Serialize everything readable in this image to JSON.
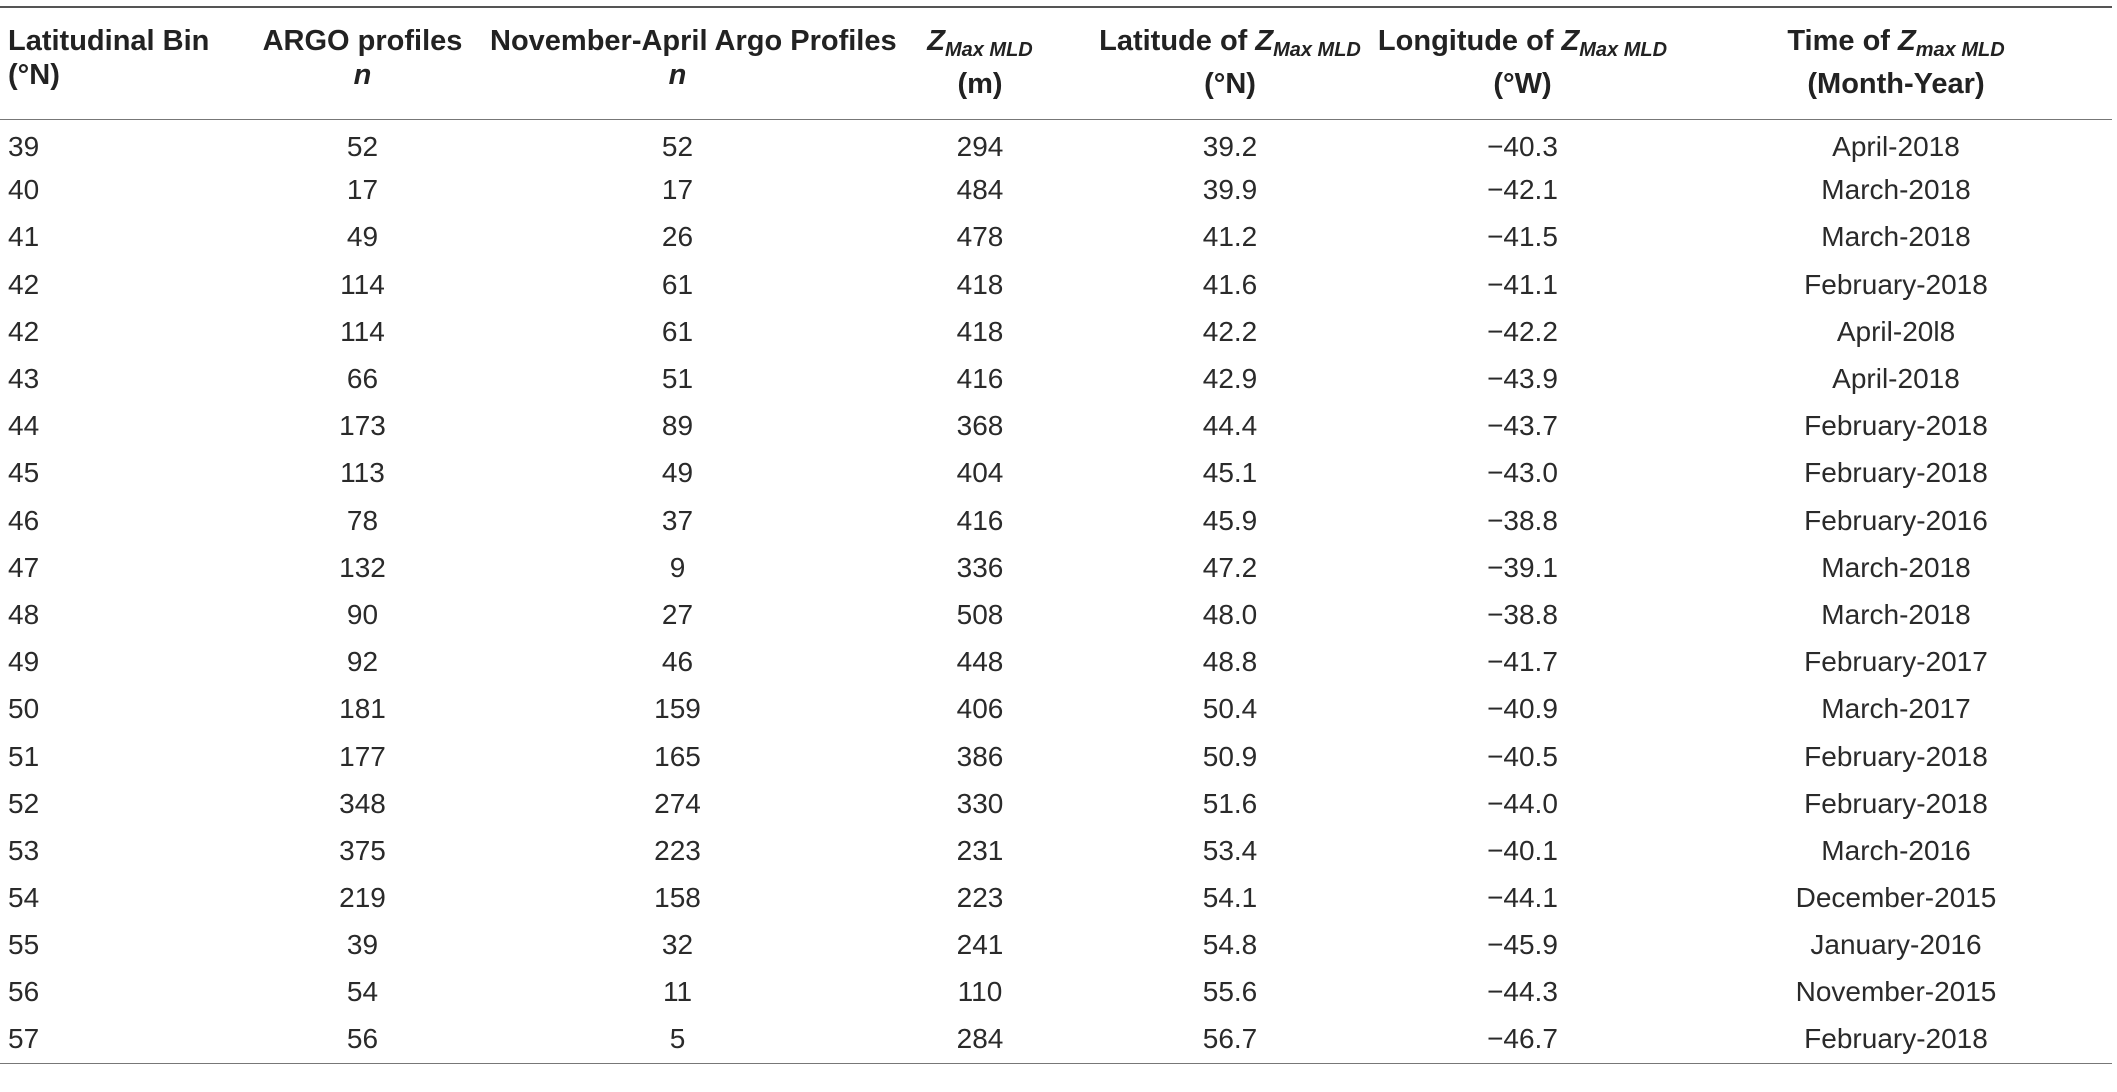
{
  "table": {
    "headers": [
      {
        "line1": "Latitudinal Bin",
        "line2": "(°N)"
      },
      {
        "line1": "ARGO profiles",
        "line2": "n"
      },
      {
        "line1": "November-April Argo Profiles",
        "line2": "n"
      },
      {
        "z": "Z",
        "sub": "Max MLD",
        "pre": "",
        "line2": "(m)"
      },
      {
        "pre": "Latitude of ",
        "z": "Z",
        "sub": "Max MLD",
        "line2": "(°N)"
      },
      {
        "pre": "Longitude of ",
        "z": "Z",
        "sub": "Max MLD",
        "line2": "(°W)"
      },
      {
        "pre": "Time of ",
        "z": "Z",
        "sub": "max MLD",
        "line2": "(Month-Year)"
      }
    ],
    "rows": [
      [
        "39",
        "52",
        "52",
        "294",
        "39.2",
        "−40.3",
        "April-2018"
      ],
      [
        "40",
        "17",
        "17",
        "484",
        "39.9",
        "−42.1",
        "March-2018"
      ],
      [
        "41",
        "49",
        "26",
        "478",
        "41.2",
        "−41.5",
        "March-2018"
      ],
      [
        "42",
        "114",
        "61",
        "418",
        "41.6",
        "−41.1",
        "February-2018"
      ],
      [
        "42",
        "114",
        "61",
        "418",
        "42.2",
        "−42.2",
        "April-20l8"
      ],
      [
        "43",
        "66",
        "51",
        "416",
        "42.9",
        "−43.9",
        "April-2018"
      ],
      [
        "44",
        "173",
        "89",
        "368",
        "44.4",
        "−43.7",
        "February-2018"
      ],
      [
        "45",
        "113",
        "49",
        "404",
        "45.1",
        "−43.0",
        "February-2018"
      ],
      [
        "46",
        "78",
        "37",
        "416",
        "45.9",
        "−38.8",
        "February-2016"
      ],
      [
        "47",
        "132",
        "9",
        "336",
        "47.2",
        "−39.1",
        "March-2018"
      ],
      [
        "48",
        "90",
        "27",
        "508",
        "48.0",
        "−38.8",
        "March-2018"
      ],
      [
        "49",
        "92",
        "46",
        "448",
        "48.8",
        "−41.7",
        "February-2017"
      ],
      [
        "50",
        "181",
        "159",
        "406",
        "50.4",
        "−40.9",
        "March-2017"
      ],
      [
        "51",
        "177",
        "165",
        "386",
        "50.9",
        "−40.5",
        "February-2018"
      ],
      [
        "52",
        "348",
        "274",
        "330",
        "51.6",
        "−44.0",
        "February-2018"
      ],
      [
        "53",
        "375",
        "223",
        "231",
        "53.4",
        "−40.1",
        "March-2016"
      ],
      [
        "54",
        "219",
        "158",
        "223",
        "54.1",
        "−44.1",
        "December-2015"
      ],
      [
        "55",
        "39",
        "32",
        "241",
        "54.8",
        "−45.9",
        "January-2016"
      ],
      [
        "56",
        "54",
        "11",
        "110",
        "55.6",
        "−44.3",
        "November-2015"
      ],
      [
        "57",
        "56",
        "5",
        "284",
        "56.7",
        "−46.7",
        "February-2018"
      ]
    ]
  }
}
